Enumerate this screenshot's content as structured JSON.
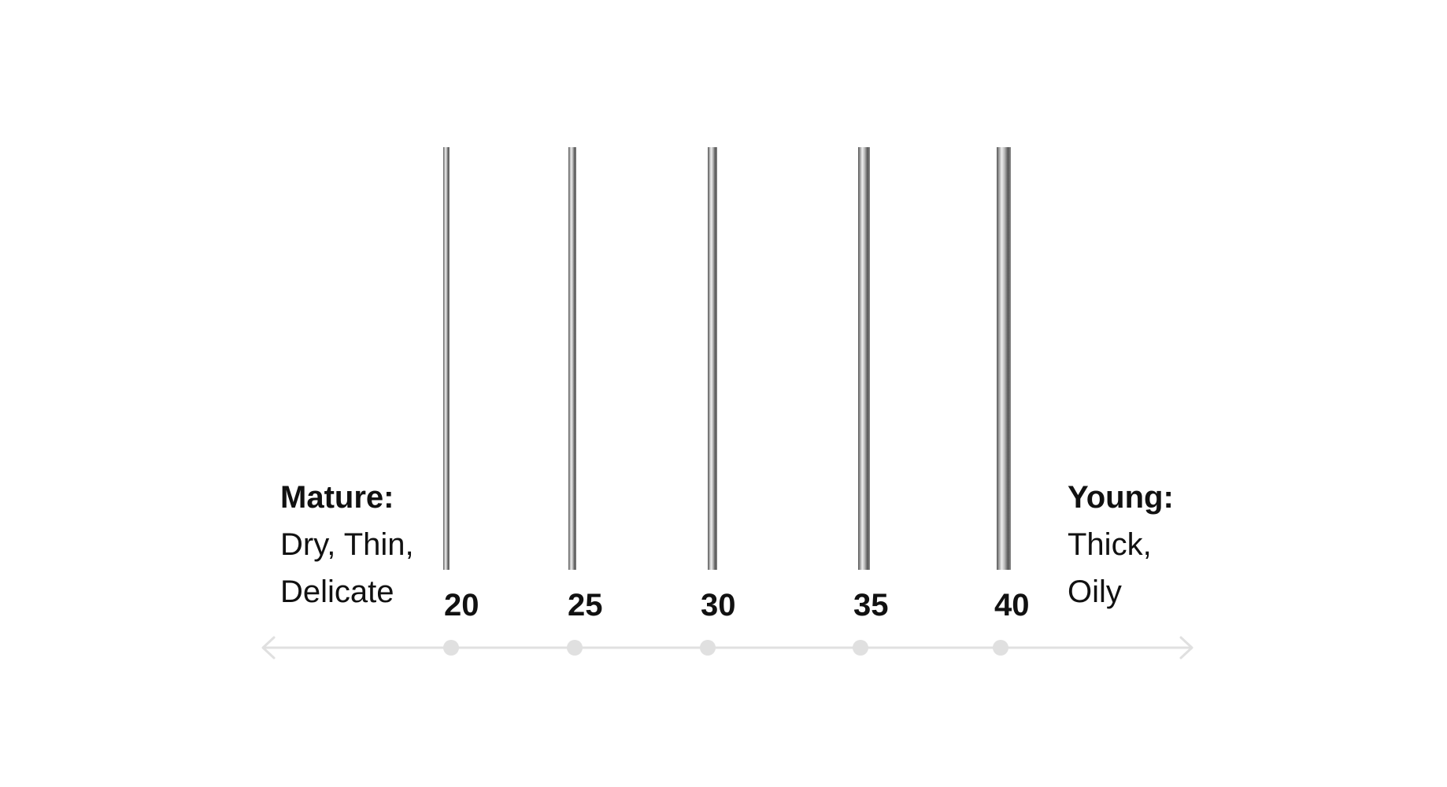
{
  "left_label": {
    "heading": "Mature:",
    "lines": [
      "Dry, Thin,",
      "Delicate"
    ]
  },
  "right_label": {
    "heading": "Young:",
    "lines": [
      "Thick,",
      "Oily"
    ]
  },
  "needles": [
    {
      "label": "20"
    },
    {
      "label": "25"
    },
    {
      "label": "30"
    },
    {
      "label": "35"
    },
    {
      "label": "40"
    }
  ],
  "colors": {
    "text": "#111111",
    "axis": "#e0e0e0",
    "needle_dark": "#555555",
    "needle_light": "#eeeeee"
  },
  "icons": {
    "axis_left": "arrow-left-icon",
    "axis_right": "arrow-right-icon",
    "axis_marker": "dot-marker-icon"
  }
}
